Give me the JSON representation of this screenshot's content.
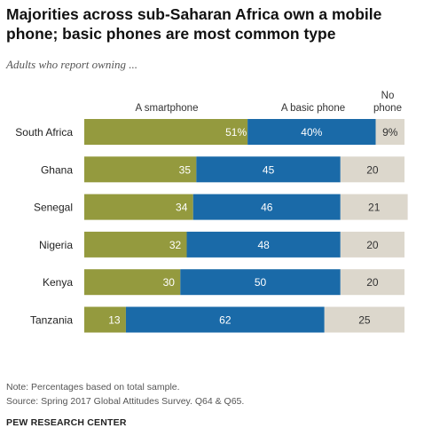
{
  "title": "Majorities across sub-Saharan Africa own a mobile phone; basic phones are most common type",
  "subtitle": "Adults who report owning ...",
  "note": "Note: Percentages based on total sample.",
  "source": "Source: Spring 2017 Global Attitudes Survey. Q64 & Q65.",
  "credit": "PEW RESEARCH CENTER",
  "colors": {
    "smartphone": "#949a3e",
    "basic": "#1a6aa8",
    "none": "#dcd7cc"
  },
  "chart_data": {
    "type": "bar",
    "orientation": "horizontal",
    "stacked": true,
    "categories": [
      "South Africa",
      "Ghana",
      "Senegal",
      "Nigeria",
      "Kenya",
      "Tanzania"
    ],
    "series": [
      {
        "name": "A smartphone",
        "values": [
          51,
          35,
          34,
          32,
          30,
          13
        ],
        "labels": [
          "51%",
          "35",
          "34",
          "32",
          "30",
          "13"
        ]
      },
      {
        "name": "A basic phone",
        "values": [
          40,
          45,
          46,
          48,
          50,
          62
        ],
        "labels": [
          "40%",
          "45",
          "46",
          "48",
          "50",
          "62"
        ]
      },
      {
        "name": "No phone",
        "values": [
          9,
          20,
          21,
          20,
          20,
          25
        ],
        "labels": [
          "9%",
          "20",
          "21",
          "20",
          "20",
          "25"
        ]
      }
    ],
    "legend_placement": "top",
    "grid": false
  }
}
